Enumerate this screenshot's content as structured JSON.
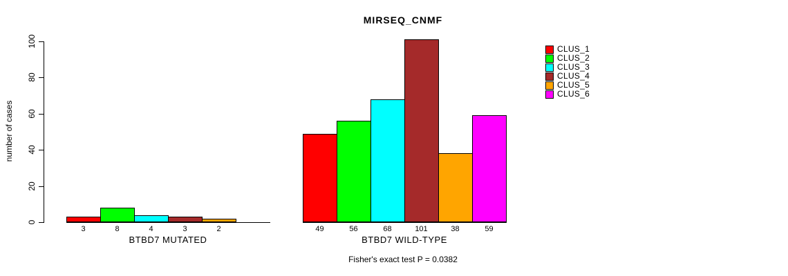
{
  "chart_data": {
    "type": "bar",
    "title": "MIRSEQ_CNMF",
    "ylabel": "number of cases",
    "xlabel": "",
    "ylim": [
      0,
      100
    ],
    "yticks": [
      0,
      20,
      40,
      60,
      80,
      100
    ],
    "grid": false,
    "legend_position": "right",
    "series": [
      {
        "name": "CLUS_1",
        "color": "#FF0000"
      },
      {
        "name": "CLUS_2",
        "color": "#00FF00"
      },
      {
        "name": "CLUS_3",
        "color": "#00FFFF"
      },
      {
        "name": "CLUS_4",
        "color": "#A52A2A"
      },
      {
        "name": "CLUS_5",
        "color": "#FFA500"
      },
      {
        "name": "CLUS_6",
        "color": "#FF00FF"
      }
    ],
    "groups": [
      {
        "label": "BTBD7 MUTATED",
        "values": [
          3,
          8,
          4,
          3,
          2,
          0
        ],
        "value_labels": [
          "3",
          "8",
          "4",
          "3",
          "2",
          ""
        ]
      },
      {
        "label": "BTBD7 WILD-TYPE",
        "values": [
          49,
          56,
          68,
          101,
          38,
          59
        ],
        "value_labels": [
          "49",
          "56",
          "68",
          "101",
          "38",
          "59"
        ]
      }
    ],
    "annotation": "Fisher's exact test P = 0.0382"
  }
}
